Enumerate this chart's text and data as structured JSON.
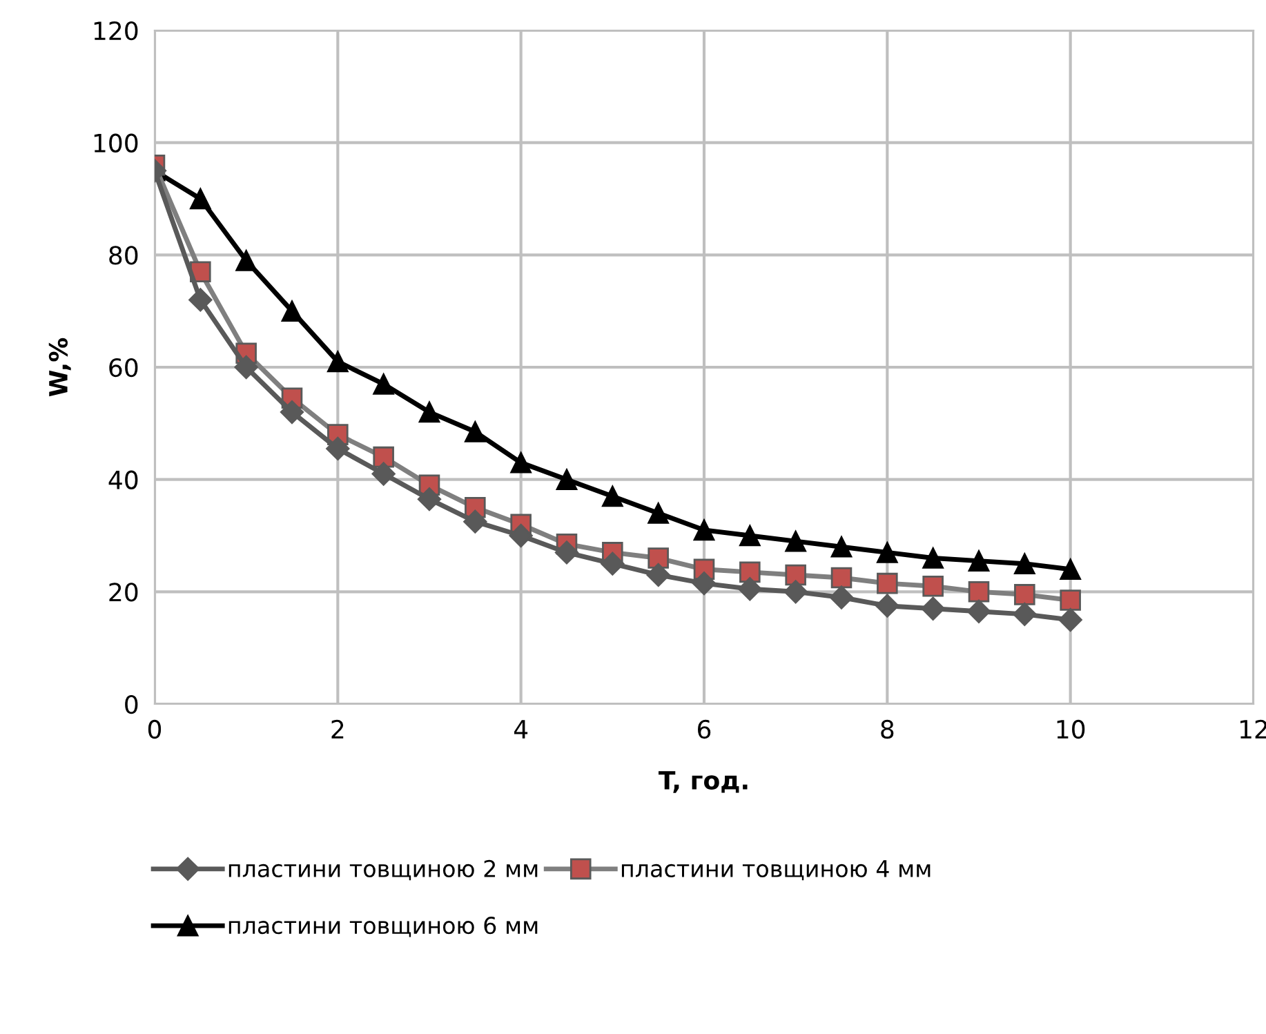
{
  "chart_data": {
    "type": "line",
    "xlabel": "T, год.",
    "ylabel": "W,%",
    "x": [
      0,
      0.5,
      1,
      1.5,
      2,
      2.5,
      3,
      3.5,
      4,
      4.5,
      5,
      5.5,
      6,
      6.5,
      7,
      7.5,
      8,
      8.5,
      9,
      9.5,
      10
    ],
    "series": [
      {
        "name": "пластини товщиною 2 мм",
        "color": "#595959",
        "marker": "diamond",
        "values": [
          95,
          72,
          60,
          52,
          45.5,
          41,
          36.5,
          32.5,
          30,
          27,
          25,
          23,
          21.5,
          20.5,
          20,
          19,
          17.5,
          17,
          16.5,
          16,
          15
        ]
      },
      {
        "name": "пластини товщиною 4 мм",
        "color": "#c0504d",
        "marker": "square",
        "values": [
          96,
          77,
          62.5,
          54.5,
          48,
          44,
          39,
          35,
          32,
          28.5,
          27,
          26,
          24,
          23.5,
          23,
          22.5,
          21.5,
          21,
          20,
          19.5,
          18.5
        ]
      },
      {
        "name": "пластини товщиною 6 мм",
        "color": "#000000",
        "marker": "triangle",
        "values": [
          95,
          90,
          79,
          70,
          61,
          57,
          52,
          48.5,
          43,
          40,
          37,
          34,
          31,
          30,
          29,
          28,
          27,
          26,
          25.5,
          25,
          24
        ]
      }
    ],
    "xlim": [
      0,
      12
    ],
    "xticks": [
      0,
      2,
      4,
      6,
      8,
      10,
      12
    ],
    "ylim": [
      0,
      120
    ],
    "yticks": [
      0,
      20,
      40,
      60,
      80,
      100,
      120
    ],
    "grid": true,
    "legend": "bottom"
  }
}
